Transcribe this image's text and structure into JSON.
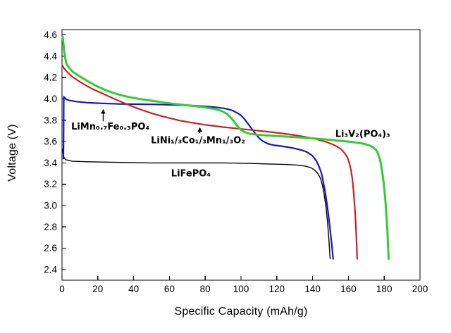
{
  "figure": {
    "background": "#ffffff",
    "frame_color": "#000000"
  },
  "chart_data": {
    "type": "line",
    "title": "",
    "xlabel": "Specific Capacity (mAh/g)",
    "ylabel": "Voltage (V)",
    "xlim": [
      0,
      200
    ],
    "ylim": [
      2.3,
      4.65
    ],
    "xticks": [
      0,
      20,
      40,
      60,
      80,
      100,
      120,
      140,
      160,
      180,
      200
    ],
    "yticks": [
      2.4,
      2.6,
      2.8,
      3.0,
      3.2,
      3.4,
      3.6,
      3.8,
      4.0,
      4.2,
      4.4,
      4.6
    ],
    "grid": false,
    "legend_position": "none",
    "tick_direction": "in",
    "series": [
      {
        "name": "LiFePO₄",
        "color": "#000000",
        "width": 1.4,
        "points": [
          [
            0.3,
            3.53
          ],
          [
            0.8,
            3.46
          ],
          [
            2,
            3.43
          ],
          [
            6,
            3.415
          ],
          [
            15,
            3.41
          ],
          [
            30,
            3.405
          ],
          [
            50,
            3.4
          ],
          [
            70,
            3.4
          ],
          [
            90,
            3.4
          ],
          [
            105,
            3.395
          ],
          [
            115,
            3.39
          ],
          [
            125,
            3.385
          ],
          [
            131,
            3.38
          ],
          [
            136,
            3.37
          ],
          [
            139,
            3.355
          ],
          [
            141,
            3.335
          ],
          [
            143,
            3.3
          ],
          [
            144.5,
            3.25
          ],
          [
            145.5,
            3.19
          ],
          [
            146.5,
            3.1
          ],
          [
            147.5,
            2.98
          ],
          [
            148.3,
            2.85
          ],
          [
            149,
            2.7
          ],
          [
            149.6,
            2.55
          ],
          [
            149.8,
            2.5
          ]
        ]
      },
      {
        "name": "LiMn₀.₇Fe₀.₃PO₄",
        "color": "#1515c3",
        "width": 2.2,
        "points": [
          [
            0.8,
            3.44
          ],
          [
            0.9,
            3.7
          ],
          [
            1.0,
            4.02
          ],
          [
            2,
            4.0
          ],
          [
            4,
            3.985
          ],
          [
            8,
            3.975
          ],
          [
            14,
            3.965
          ],
          [
            22,
            3.958
          ],
          [
            32,
            3.952
          ],
          [
            42,
            3.95
          ],
          [
            52,
            3.948
          ],
          [
            62,
            3.944
          ],
          [
            72,
            3.938
          ],
          [
            80,
            3.93
          ],
          [
            86,
            3.922
          ],
          [
            91,
            3.91
          ],
          [
            95,
            3.893
          ],
          [
            98,
            3.868
          ],
          [
            100,
            3.845
          ],
          [
            102,
            3.81
          ],
          [
            104,
            3.765
          ],
          [
            106,
            3.72
          ],
          [
            108,
            3.675
          ],
          [
            110,
            3.635
          ],
          [
            112,
            3.605
          ],
          [
            115,
            3.58
          ],
          [
            118,
            3.567
          ],
          [
            122,
            3.558
          ],
          [
            126,
            3.548
          ],
          [
            130,
            3.536
          ],
          [
            133,
            3.523
          ],
          [
            136,
            3.508
          ],
          [
            138,
            3.49
          ],
          [
            140,
            3.465
          ],
          [
            142,
            3.42
          ],
          [
            143.5,
            3.37
          ],
          [
            145,
            3.3
          ],
          [
            146,
            3.22
          ],
          [
            147,
            3.13
          ],
          [
            148,
            3.02
          ],
          [
            149,
            2.89
          ],
          [
            150,
            2.74
          ],
          [
            151,
            2.59
          ],
          [
            151.5,
            2.5
          ]
        ]
      },
      {
        "name": "LiNi₁/₃Co₁/₃Mn₁/₃O₂",
        "color": "#cc2020",
        "width": 2.2,
        "points": [
          [
            0.4,
            4.31
          ],
          [
            1,
            4.29
          ],
          [
            3,
            4.25
          ],
          [
            6,
            4.205
          ],
          [
            10,
            4.16
          ],
          [
            14,
            4.12
          ],
          [
            18,
            4.085
          ],
          [
            22,
            4.055
          ],
          [
            26,
            4.025
          ],
          [
            30,
            3.995
          ],
          [
            34,
            3.965
          ],
          [
            38,
            3.938
          ],
          [
            42,
            3.912
          ],
          [
            46,
            3.888
          ],
          [
            50,
            3.866
          ],
          [
            55,
            3.842
          ],
          [
            60,
            3.82
          ],
          [
            65,
            3.8
          ],
          [
            70,
            3.784
          ],
          [
            75,
            3.77
          ],
          [
            80,
            3.757
          ],
          [
            85,
            3.746
          ],
          [
            90,
            3.736
          ],
          [
            95,
            3.727
          ],
          [
            100,
            3.718
          ],
          [
            106,
            3.708
          ],
          [
            112,
            3.697
          ],
          [
            118,
            3.686
          ],
          [
            124,
            3.674
          ],
          [
            130,
            3.66
          ],
          [
            135,
            3.646
          ],
          [
            140,
            3.63
          ],
          [
            144,
            3.614
          ],
          [
            148,
            3.594
          ],
          [
            151,
            3.575
          ],
          [
            154,
            3.55
          ],
          [
            156,
            3.526
          ],
          [
            158,
            3.49
          ],
          [
            159.5,
            3.45
          ],
          [
            160.5,
            3.4
          ],
          [
            161.5,
            3.33
          ],
          [
            162.2,
            3.25
          ],
          [
            162.8,
            3.15
          ],
          [
            163.3,
            3.04
          ],
          [
            163.8,
            2.92
          ],
          [
            164.2,
            2.79
          ],
          [
            164.6,
            2.64
          ],
          [
            164.9,
            2.5
          ]
        ]
      },
      {
        "name": "Li₃V₂(PO₄)₃",
        "color": "#33cc33",
        "width": 3.0,
        "points": [
          [
            0.4,
            4.58
          ],
          [
            0.8,
            4.52
          ],
          [
            1.2,
            4.45
          ],
          [
            1.8,
            4.38
          ],
          [
            2.5,
            4.33
          ],
          [
            4,
            4.29
          ],
          [
            6,
            4.255
          ],
          [
            9,
            4.22
          ],
          [
            12,
            4.19
          ],
          [
            16,
            4.15
          ],
          [
            20,
            4.115
          ],
          [
            24,
            4.085
          ],
          [
            28,
            4.06
          ],
          [
            33,
            4.035
          ],
          [
            38,
            4.015
          ],
          [
            44,
            3.998
          ],
          [
            50,
            3.983
          ],
          [
            56,
            3.968
          ],
          [
            62,
            3.955
          ],
          [
            68,
            3.944
          ],
          [
            74,
            3.933
          ],
          [
            80,
            3.92
          ],
          [
            85,
            3.906
          ],
          [
            89,
            3.888
          ],
          [
            92,
            3.862
          ],
          [
            94,
            3.83
          ],
          [
            96,
            3.79
          ],
          [
            98,
            3.745
          ],
          [
            100,
            3.71
          ],
          [
            102,
            3.688
          ],
          [
            105,
            3.673
          ],
          [
            109,
            3.664
          ],
          [
            114,
            3.658
          ],
          [
            120,
            3.652
          ],
          [
            127,
            3.645
          ],
          [
            134,
            3.637
          ],
          [
            141,
            3.628
          ],
          [
            148,
            3.618
          ],
          [
            154,
            3.609
          ],
          [
            160,
            3.6
          ],
          [
            165,
            3.59
          ],
          [
            169,
            3.578
          ],
          [
            172,
            3.562
          ],
          [
            174,
            3.543
          ],
          [
            175.5,
            3.52
          ],
          [
            176.5,
            3.49
          ],
          [
            177.5,
            3.44
          ],
          [
            178.3,
            3.38
          ],
          [
            179,
            3.3
          ],
          [
            179.8,
            3.2
          ],
          [
            180.5,
            3.08
          ],
          [
            181.2,
            2.93
          ],
          [
            181.8,
            2.76
          ],
          [
            182.2,
            2.6
          ],
          [
            182.5,
            2.5
          ]
        ]
      }
    ],
    "annotations": [
      {
        "id": "limnfe-label",
        "text": "LiMn₀.₇Fe₀.₃PO₄",
        "x": 27,
        "y": 3.74,
        "arrow": {
          "x": 23,
          "from": 3.79,
          "to": 3.905
        }
      },
      {
        "id": "linicomn-label",
        "text": "LiNi₁/₃Co₁/₃Mn₁/₃O₂",
        "x": 76,
        "y": 3.61,
        "arrow": {
          "x": 77,
          "from": 3.68,
          "to": 3.735
        }
      },
      {
        "id": "lifepo4-label",
        "text": "LiFePO₄",
        "x": 72,
        "y": 3.3,
        "arrow": null
      },
      {
        "id": "lvp-label",
        "text": "Li₃V₂(PO₄)₃",
        "x": 168,
        "y": 3.67,
        "arrow": null
      }
    ]
  }
}
